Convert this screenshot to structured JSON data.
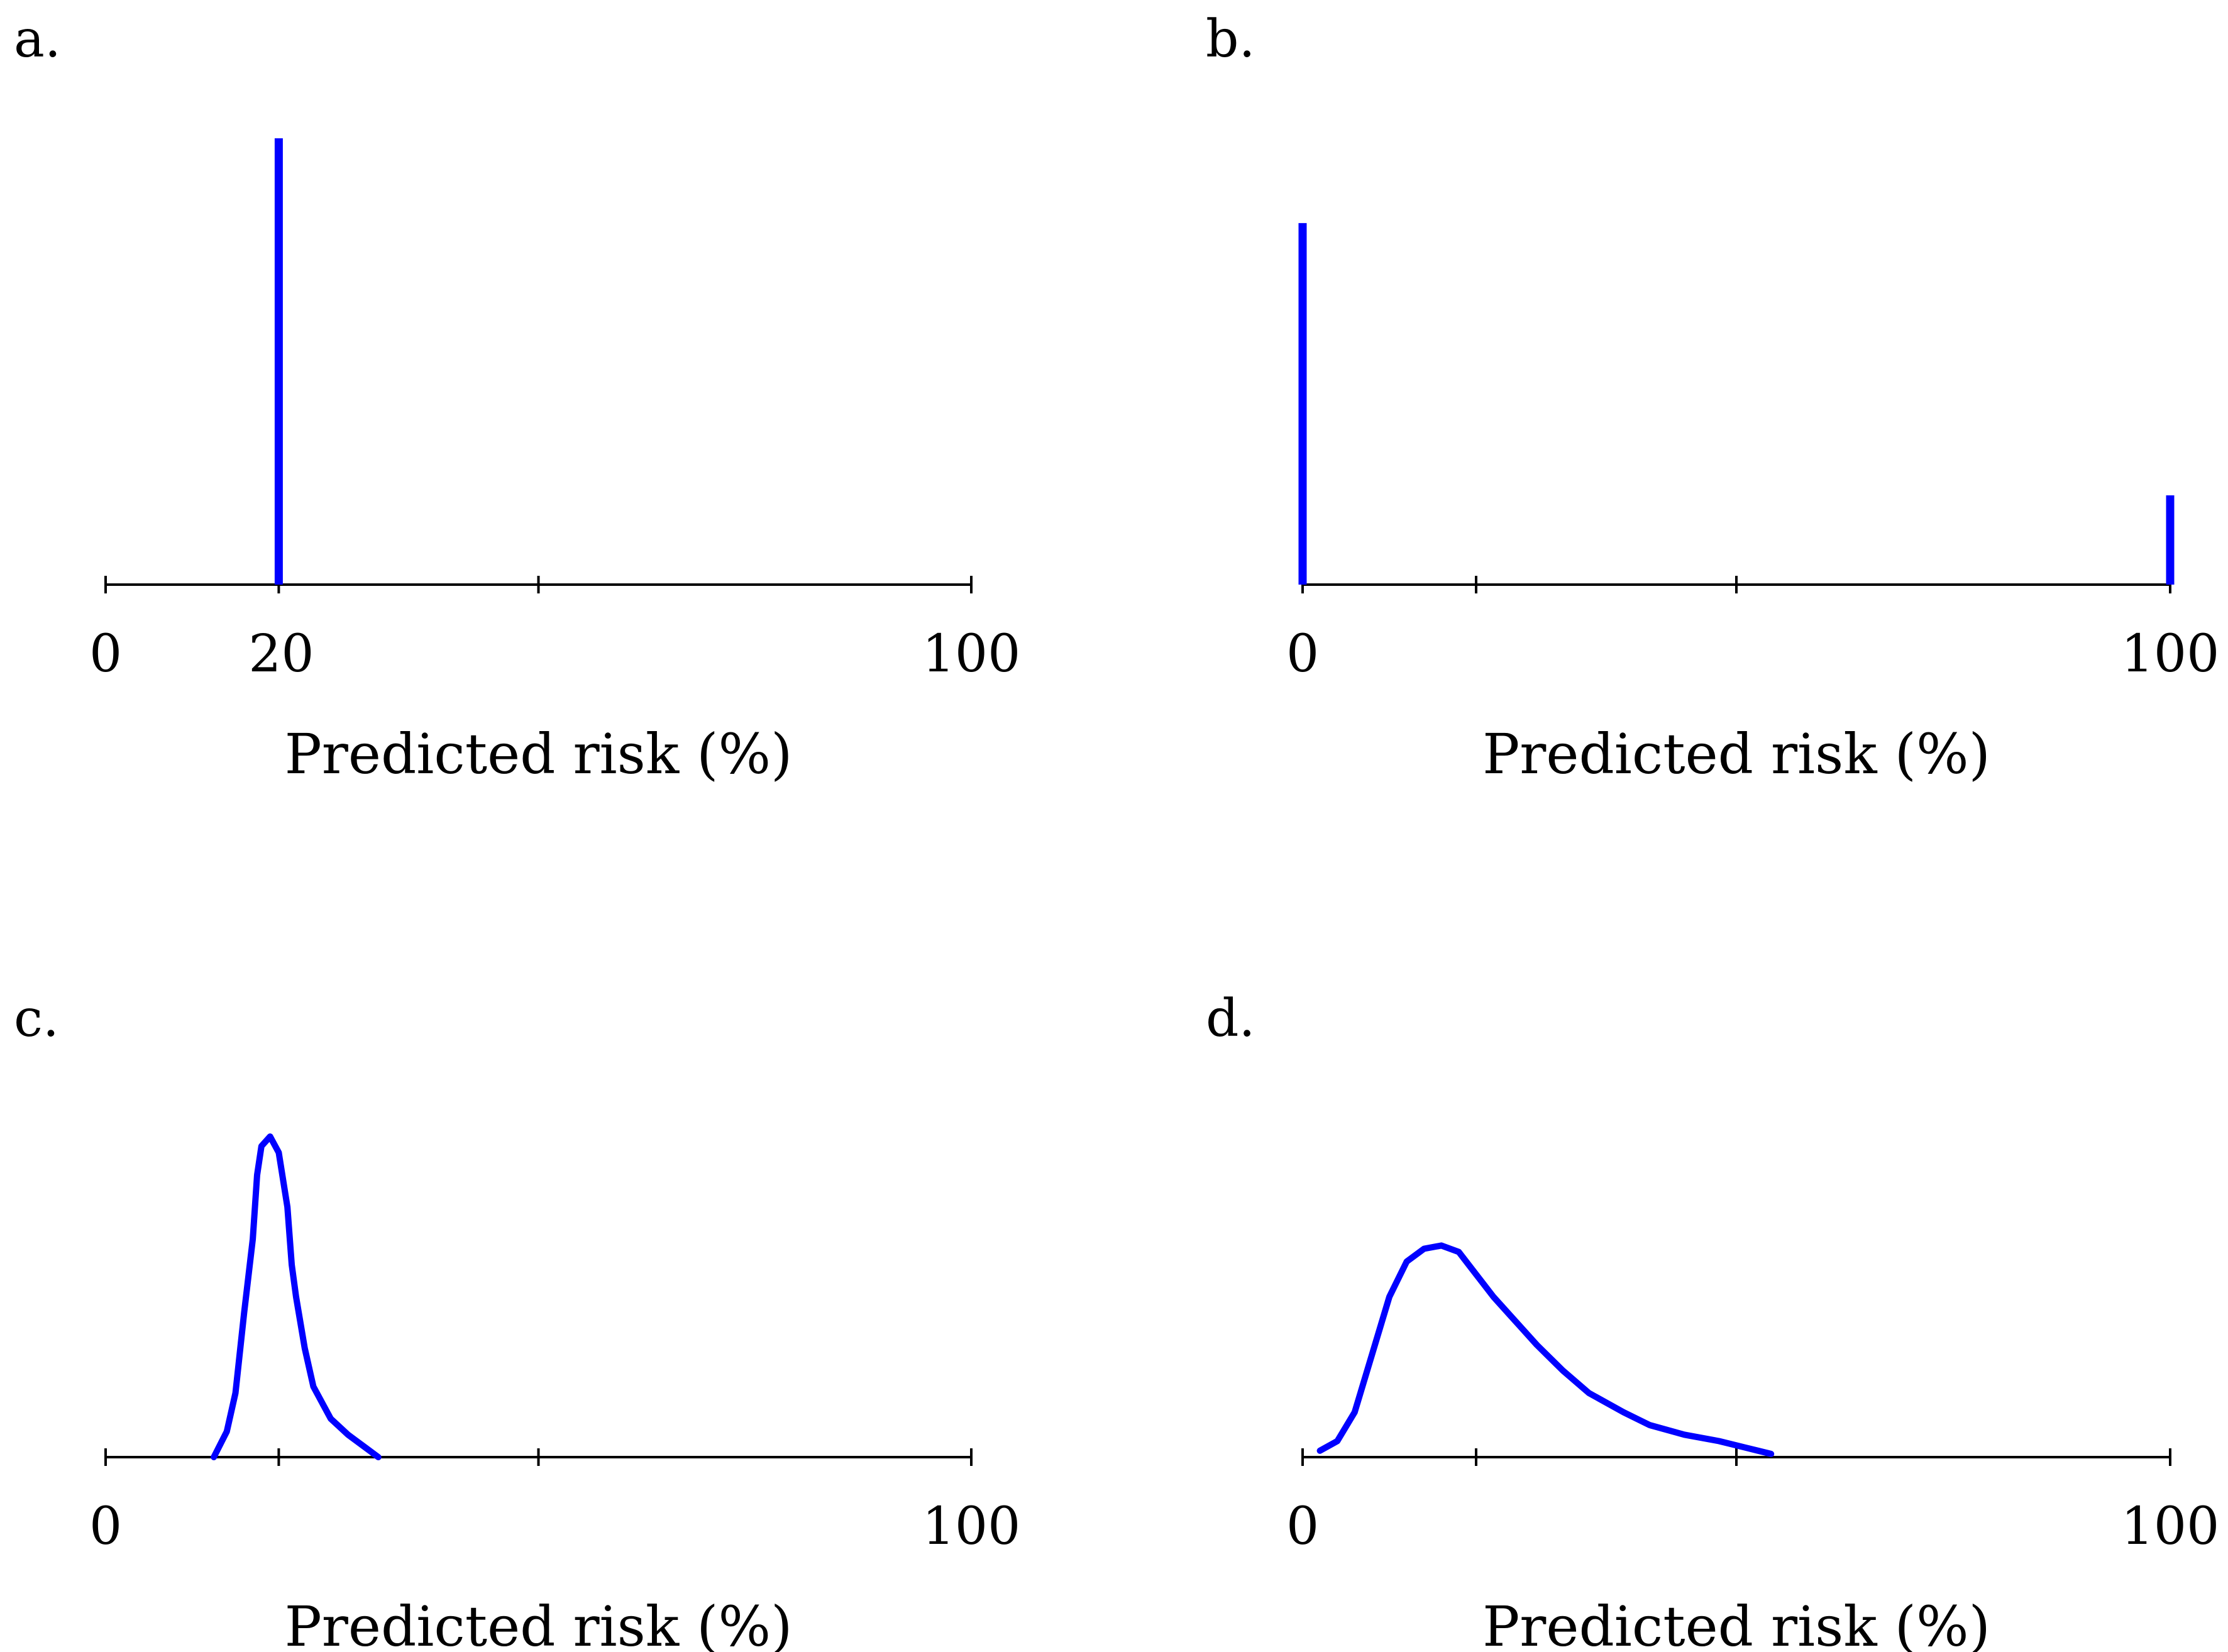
{
  "colors": {
    "series": "#0000ff",
    "axis": "#000000"
  },
  "chart_data": [
    {
      "panel": "a.",
      "type": "spike",
      "xlabel": "Predicted risk (%)",
      "xlim": [
        0,
        100
      ],
      "ticks": [
        0,
        20,
        50,
        100
      ],
      "tick_labels": [
        "0",
        "20",
        "",
        "100"
      ],
      "ymax": 1.0,
      "spikes": [
        {
          "x": 20,
          "height": 1.0
        }
      ]
    },
    {
      "panel": "b.",
      "type": "spike",
      "xlabel": "Predicted risk (%)",
      "xlim": [
        0,
        100
      ],
      "ticks": [
        0,
        20,
        50,
        100
      ],
      "tick_labels": [
        "0",
        "",
        "",
        "100"
      ],
      "ymax": 1.0,
      "spikes": [
        {
          "x": 0,
          "height": 0.81
        },
        {
          "x": 100,
          "height": 0.2
        }
      ]
    },
    {
      "panel": "c.",
      "type": "line",
      "xlabel": "Predicted risk (%)",
      "xlim": [
        0,
        100
      ],
      "ticks": [
        0,
        20,
        50,
        100
      ],
      "tick_labels": [
        "0",
        "",
        "",
        "100"
      ],
      "ymax": 1.0,
      "x": [
        12.5,
        14,
        15,
        16,
        17,
        17.5,
        18,
        19,
        20,
        21,
        21.5,
        22,
        23,
        24,
        26,
        28,
        30,
        31.5
      ],
      "y": [
        0.0,
        0.08,
        0.2,
        0.45,
        0.68,
        0.88,
        0.97,
        1.0,
        0.95,
        0.78,
        0.6,
        0.5,
        0.34,
        0.22,
        0.12,
        0.07,
        0.03,
        0.0
      ]
    },
    {
      "panel": "d.",
      "type": "line",
      "xlabel": "Predicted risk (%)",
      "xlim": [
        0,
        100
      ],
      "ticks": [
        0,
        20,
        50,
        100
      ],
      "tick_labels": [
        "0",
        "",
        "",
        "100"
      ],
      "ymax": 1.0,
      "x": [
        2,
        4,
        6,
        8,
        10,
        12,
        14,
        16,
        18,
        20,
        22,
        24,
        27,
        30,
        33,
        37,
        40,
        44,
        48,
        51,
        54
      ],
      "y": [
        0.02,
        0.05,
        0.14,
        0.32,
        0.5,
        0.61,
        0.65,
        0.66,
        0.64,
        0.57,
        0.5,
        0.44,
        0.35,
        0.27,
        0.2,
        0.14,
        0.1,
        0.07,
        0.05,
        0.03,
        0.01
      ]
    }
  ]
}
